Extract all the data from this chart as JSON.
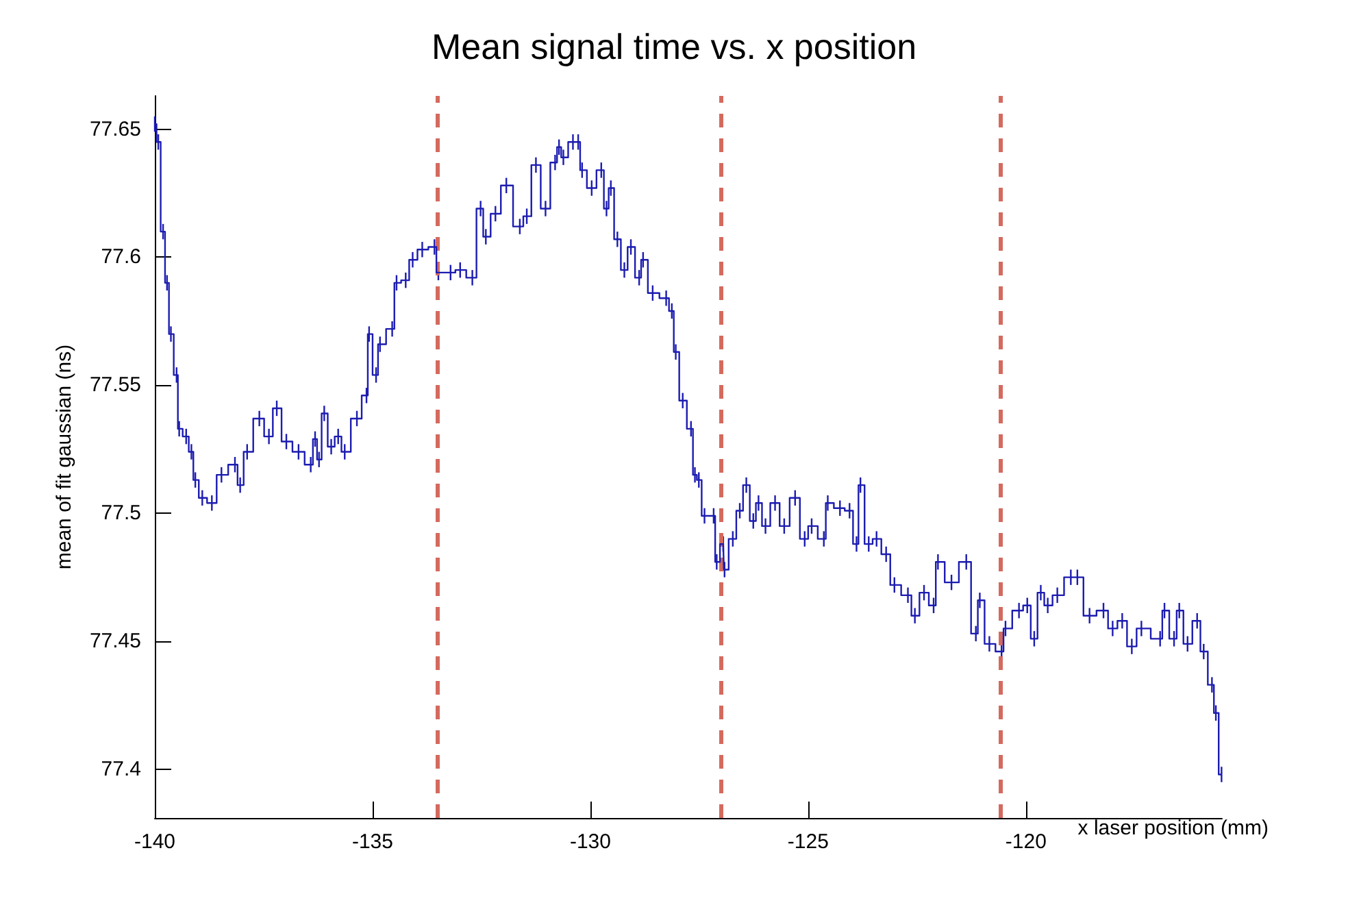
{
  "chart_data": {
    "type": "step",
    "title": "Mean signal time vs. x position",
    "xlabel": "x laser position (mm)",
    "ylabel": "mean of fit gaussian (ns)",
    "xlim": [
      -140,
      -115.5
    ],
    "xticks": [
      -140,
      -135,
      -130,
      -125,
      -120
    ],
    "ylim": [
      77.381,
      77.663
    ],
    "yticks": [
      77.4,
      77.45,
      77.5,
      77.55,
      77.6,
      77.65
    ],
    "grid": false,
    "marker": "none",
    "line_style": "solid",
    "ref_lines": [
      {
        "axis": "x",
        "value": -133.5,
        "color": "#d46a5e",
        "line_style": "dashed"
      },
      {
        "axis": "x",
        "value": -127,
        "color": "#d46a5e",
        "line_style": "dashed"
      },
      {
        "axis": "x",
        "value": -120.6,
        "color": "#d46a5e",
        "line_style": "dashed"
      }
    ],
    "series": [
      {
        "color": "#1c1cb0",
        "x": [
          -140,
          -139.92,
          -139.81,
          -139.72,
          -139.63,
          -139.5,
          -139.44,
          -139.28,
          -139.16,
          -139.07,
          -138.91,
          -138.69,
          -138.47,
          -138.16,
          -138.04,
          -137.88,
          -137.6,
          -137.38,
          -137.2,
          -136.98,
          -136.7,
          -136.42,
          -136.32,
          -136.23,
          -136.11,
          -135.95,
          -135.79,
          -135.64,
          -135.36,
          -135.14,
          -135.08,
          -134.92,
          -134.83,
          -134.55,
          -134.45,
          -134.24,
          -134.08,
          -133.86,
          -133.58,
          -133.49,
          -133.21,
          -132.99,
          -132.71,
          -132.52,
          -132.4,
          -132.18,
          -131.93,
          -131.62,
          -131.46,
          -131.25,
          -131.03,
          -130.81,
          -130.72,
          -130.62,
          -130.4,
          -130.28,
          -130.19,
          -129.97,
          -129.75,
          -129.63,
          -129.53,
          -129.38,
          -129.22,
          -129.07,
          -128.88,
          -128.79,
          -128.57,
          -128.26,
          -128.13,
          -128.04,
          -127.88,
          -127.69,
          -127.6,
          -127.51,
          -127.38,
          -127.17,
          -127.1,
          -126.95,
          -126.92,
          -126.73,
          -126.57,
          -126.42,
          -126.26,
          -126.14,
          -125.98,
          -125.76,
          -125.55,
          -125.3,
          -125.08,
          -124.92,
          -124.64,
          -124.55,
          -124.27,
          -124.05,
          -123.89,
          -123.8,
          -123.61,
          -123.43,
          -123.21,
          -123.02,
          -122.71,
          -122.55,
          -122.34,
          -122.12,
          -122.02,
          -121.71,
          -121.37,
          -121.15,
          -121.06,
          -120.84,
          -120.56,
          -120.47,
          -120.16,
          -119.97,
          -119.81,
          -119.66,
          -119.5,
          -119.28,
          -118.97,
          -118.82,
          -118.54,
          -118.22,
          -118.01,
          -117.79,
          -117.57,
          -117.35,
          -116.92,
          -116.82,
          -116.6,
          -116.48,
          -116.29,
          -116.07,
          -115.92,
          -115.73,
          -115.64,
          -115.51
        ],
        "values": [
          77.652,
          77.645,
          77.61,
          77.59,
          77.57,
          77.554,
          77.533,
          77.53,
          77.524,
          77.513,
          77.506,
          77.504,
          77.515,
          77.519,
          77.511,
          77.524,
          77.537,
          77.53,
          77.541,
          77.528,
          77.524,
          77.519,
          77.529,
          77.521,
          77.539,
          77.526,
          77.53,
          77.524,
          77.537,
          77.546,
          77.57,
          77.554,
          77.566,
          77.572,
          77.59,
          77.591,
          77.599,
          77.603,
          77.604,
          77.594,
          77.594,
          77.595,
          77.592,
          77.619,
          77.608,
          77.617,
          77.628,
          77.612,
          77.616,
          77.636,
          77.619,
          77.637,
          77.643,
          77.639,
          77.645,
          77.645,
          77.634,
          77.627,
          77.634,
          77.619,
          77.627,
          77.607,
          77.595,
          77.604,
          77.592,
          77.599,
          77.586,
          77.584,
          77.579,
          77.563,
          77.544,
          77.533,
          77.515,
          77.513,
          77.499,
          77.499,
          77.481,
          77.488,
          77.478,
          77.49,
          77.501,
          77.511,
          77.497,
          77.504,
          77.495,
          77.504,
          77.495,
          77.506,
          77.49,
          77.495,
          77.49,
          77.504,
          77.502,
          77.501,
          77.488,
          77.511,
          77.488,
          77.49,
          77.484,
          77.472,
          77.468,
          77.46,
          77.469,
          77.464,
          77.481,
          77.473,
          77.481,
          77.453,
          77.466,
          77.449,
          77.446,
          77.455,
          77.462,
          77.464,
          77.451,
          77.469,
          77.464,
          77.468,
          77.475,
          77.475,
          77.46,
          77.462,
          77.455,
          77.458,
          77.448,
          77.455,
          77.451,
          77.462,
          77.451,
          77.462,
          77.449,
          77.458,
          77.446,
          77.433,
          77.422,
          77.398
        ],
        "errors": [
          0.003,
          0.003,
          0.003,
          0.003,
          0.003,
          0.003,
          0.003,
          0.003,
          0.003,
          0.003,
          0.003,
          0.003,
          0.003,
          0.003,
          0.003,
          0.003,
          0.003,
          0.003,
          0.003,
          0.003,
          0.003,
          0.003,
          0.003,
          0.003,
          0.003,
          0.003,
          0.003,
          0.003,
          0.003,
          0.003,
          0.003,
          0.003,
          0.003,
          0.003,
          0.003,
          0.003,
          0.003,
          0.003,
          0.003,
          0.003,
          0.003,
          0.003,
          0.003,
          0.003,
          0.003,
          0.003,
          0.003,
          0.003,
          0.003,
          0.003,
          0.003,
          0.003,
          0.003,
          0.003,
          0.003,
          0.003,
          0.003,
          0.003,
          0.003,
          0.003,
          0.003,
          0.003,
          0.003,
          0.003,
          0.003,
          0.003,
          0.003,
          0.003,
          0.003,
          0.003,
          0.003,
          0.003,
          0.003,
          0.003,
          0.003,
          0.003,
          0.003,
          0.003,
          0.003,
          0.003,
          0.003,
          0.003,
          0.003,
          0.003,
          0.003,
          0.003,
          0.003,
          0.003,
          0.003,
          0.003,
          0.003,
          0.003,
          0.003,
          0.003,
          0.003,
          0.003,
          0.003,
          0.003,
          0.003,
          0.003,
          0.003,
          0.003,
          0.003,
          0.003,
          0.003,
          0.003,
          0.003,
          0.003,
          0.003,
          0.003,
          0.003,
          0.003,
          0.003,
          0.003,
          0.003,
          0.003,
          0.003,
          0.003,
          0.003,
          0.003,
          0.003,
          0.003,
          0.003,
          0.003,
          0.003,
          0.003,
          0.003,
          0.003,
          0.003,
          0.003,
          0.003,
          0.003,
          0.003,
          0.003,
          0.003,
          0.003
        ]
      }
    ]
  }
}
